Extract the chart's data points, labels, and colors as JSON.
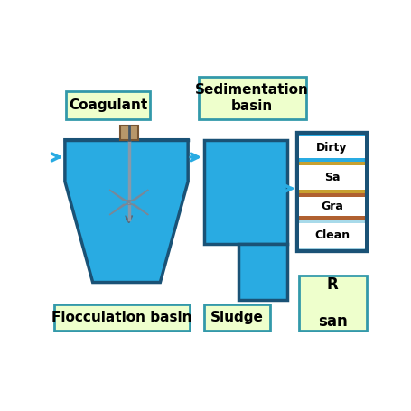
{
  "bg_color": "#ffffff",
  "light_blue": "#29ABE2",
  "dark_blue": "#1A5276",
  "light_green_box": "#EEFFCC",
  "sand_color": "#C8A030",
  "gravel_color": "#B06030",
  "clean_water_color": "#A8DAEA",
  "coagulant_box_color": "#B8976A",
  "floc_label": "Flocculation basin",
  "sed_label": "Sedimentation\nbasin",
  "sludge_label": "Sludge",
  "coagulant_label": "Coagulant",
  "dirty_label": "Dirty",
  "sand_label": "Sa",
  "gravel_label": "Gra",
  "clean_label": "Clean",
  "r_sand_label": "R\n\nsan"
}
